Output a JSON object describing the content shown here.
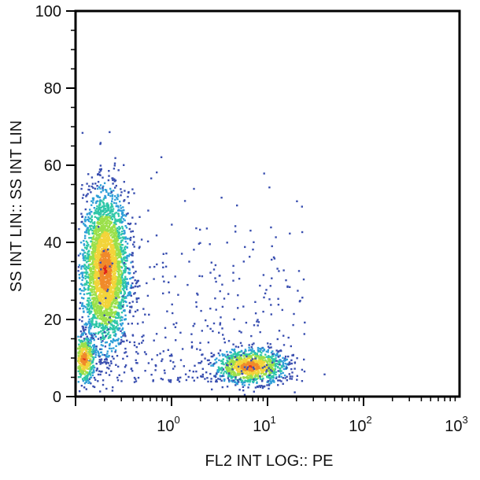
{
  "chart_data": {
    "type": "scatter",
    "style": "flow-cytometry density dot plot",
    "xlabel": "FL2 INT LOG:: PE",
    "ylabel": "SS INT LIN:: SS INT LIN",
    "x_scale": "log",
    "xlim": [
      0.1,
      1000
    ],
    "ylim": [
      0,
      100
    ],
    "x_ticks": [
      {
        "value": 1,
        "base": "10",
        "exp": "0"
      },
      {
        "value": 10,
        "base": "10",
        "exp": "1"
      },
      {
        "value": 100,
        "base": "10",
        "exp": "2"
      },
      {
        "value": 1000,
        "base": "10",
        "exp": "3"
      }
    ],
    "y_ticks": [
      "0",
      "20",
      "40",
      "60",
      "80",
      "100"
    ],
    "density_colors": [
      "#3a4fb0",
      "#2f9fd8",
      "#2fc7a8",
      "#9be04a",
      "#f2d43a",
      "#f08a2a",
      "#e0231c"
    ],
    "populations": [
      {
        "name_visible": false,
        "x_center": 0.2,
        "y_center": 33,
        "x_log_spread": 0.12,
        "y_spread": 10,
        "events": 3200
      },
      {
        "name_visible": false,
        "x_center": 6.5,
        "y_center": 8,
        "x_log_spread": 0.18,
        "y_spread": 2.2,
        "events": 1100
      },
      {
        "name_visible": false,
        "x_center": 0.12,
        "y_center": 10,
        "x_log_spread": 0.06,
        "y_spread": 3,
        "events": 500
      }
    ],
    "grid": false,
    "legend": "none"
  }
}
